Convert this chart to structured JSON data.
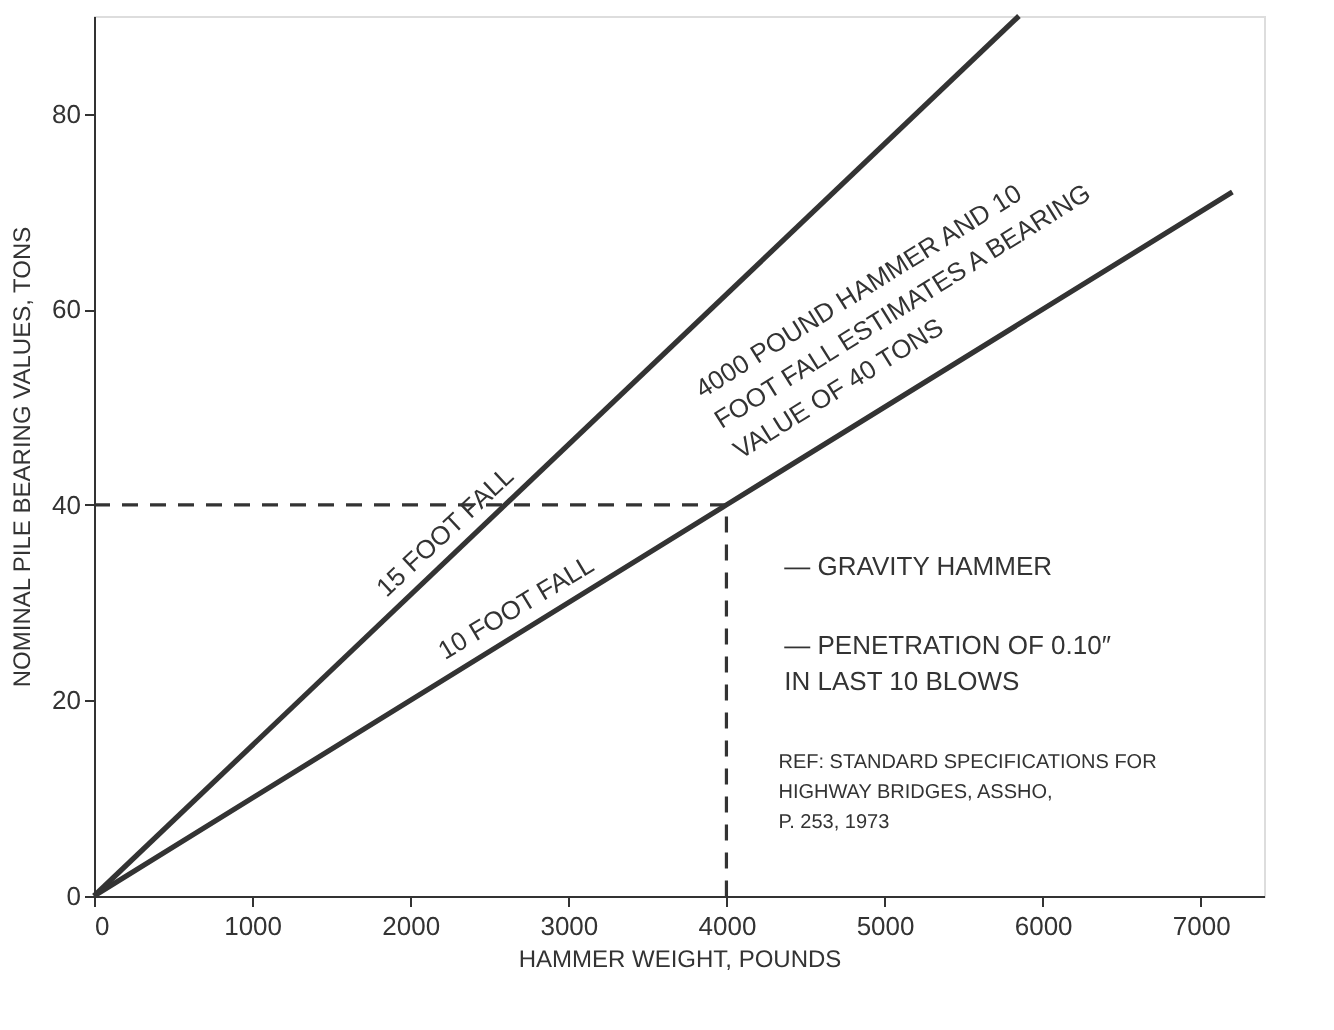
{
  "chart_data": {
    "type": "line",
    "xlabel": "HAMMER WEIGHT, POUNDS",
    "ylabel": "NOMINAL PILE BEARING VALUES, TONS",
    "series": [
      {
        "color": "#333333",
        "x": [
          0,
          5850
        ],
        "values": [
          0,
          90
        ]
      },
      {
        "color": "#333333",
        "x": [
          0,
          4000,
          7200
        ],
        "values": [
          0,
          40,
          72
        ]
      },
      {
        "color": "#333333",
        "x": [
          0,
          4000,
          4000
        ],
        "values": [
          40,
          40,
          0
        ],
        "line_style": "dashed"
      }
    ],
    "xlim": [
      0,
      7400
    ],
    "ylim": [
      0,
      90
    ],
    "xticks": [
      0,
      1000,
      2000,
      3000,
      4000,
      5000,
      6000,
      7000
    ],
    "yticks": [
      0,
      20,
      40,
      60,
      80
    ],
    "grid": false,
    "marker": "none",
    "line_style": "solid",
    "annotations": [
      {
        "text": "15 FOOT FALL",
        "x": 1900,
        "y": 29
      },
      {
        "text": "10 FOOT FALL",
        "x": 2250,
        "y": 22.5
      },
      "4000 POUND HAMMER AND 10\nFOOT FALL ESTIMATES A BEARING\nVALUE OF 40 TONS",
      "— GRAVITY HAMMER",
      "— PENETRATION OF 0.10″\n   IN LAST 10 BLOWS",
      "REF:  STANDARD SPECIFICATIONS FOR\n          HIGHWAY BRIDGES, ASSHO,\n          P. 253, 1973"
    ]
  }
}
